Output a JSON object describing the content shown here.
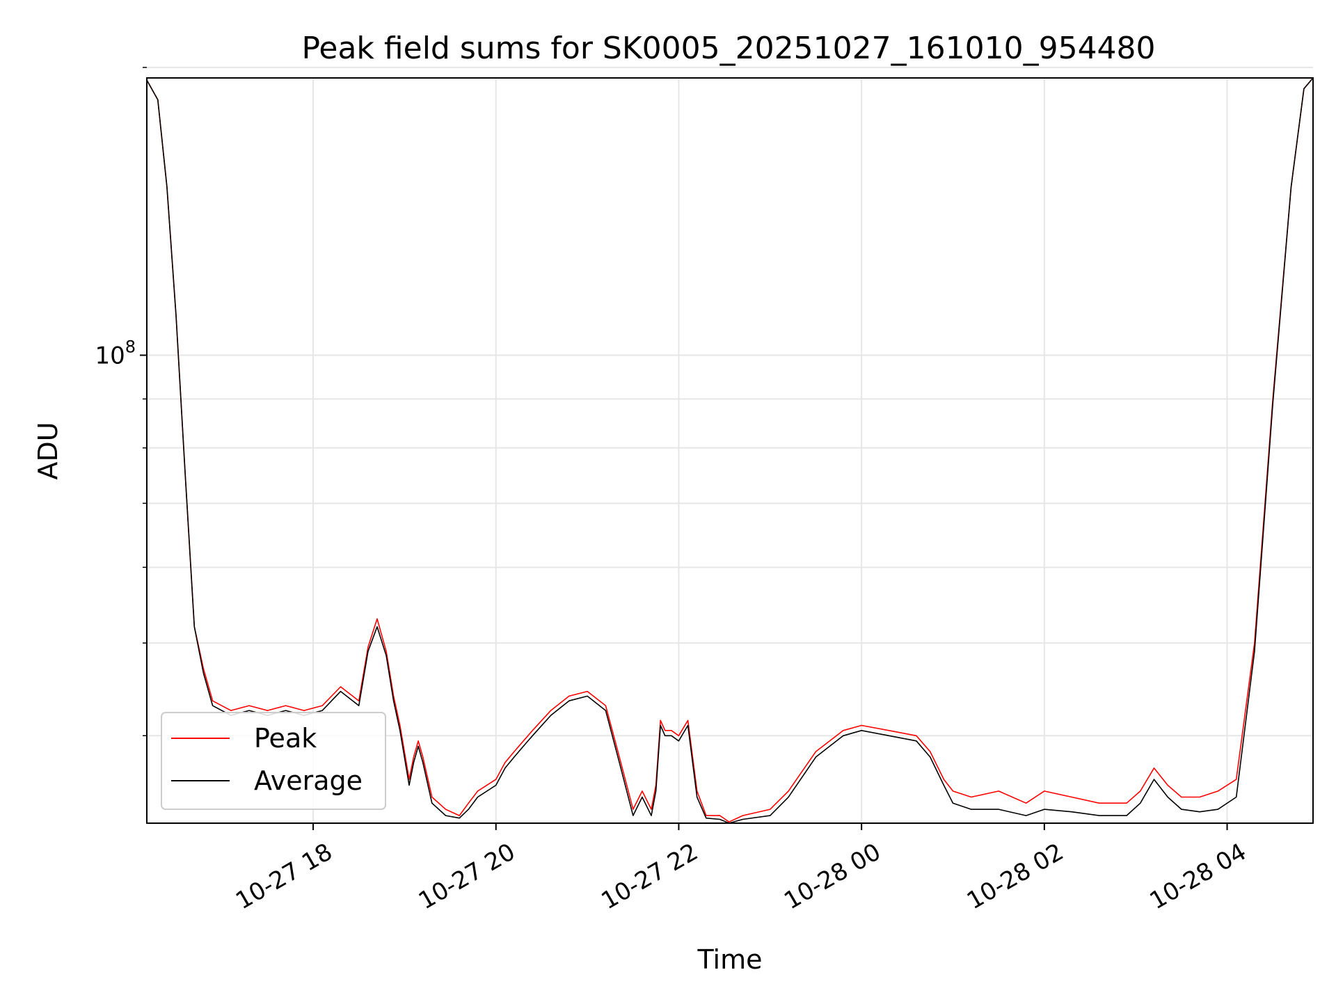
{
  "chart_data": {
    "type": "line",
    "title": "Peak field sums for SK0005_20251027_161010_954480",
    "xlabel": "Time",
    "ylabel": "ADU",
    "yscale": "log",
    "grid": true,
    "legend_location": "lower-left",
    "x_unit": "hours since 2025-10-27 00:00",
    "xlim": [
      16.18,
      28.94
    ],
    "ylim": [
      32400000.0,
      195000000.0
    ],
    "xticks": [
      {
        "value": 18,
        "label": "10-27 18"
      },
      {
        "value": 20,
        "label": "10-27 20"
      },
      {
        "value": 22,
        "label": "10-27 22"
      },
      {
        "value": 24,
        "label": "10-28 00"
      },
      {
        "value": 26,
        "label": "10-28 02"
      },
      {
        "value": 28,
        "label": "10-28 04"
      }
    ],
    "yticks_major": [
      {
        "value": 100000000,
        "label": "10",
        "exponent": "8"
      }
    ],
    "yticks_minor": [
      40000000.0,
      50000000.0,
      60000000.0,
      70000000.0,
      80000000.0,
      90000000.0,
      200000000.0
    ],
    "series": [
      {
        "name": "Peak",
        "color": "#ff0000",
        "x": [
          16.18,
          16.3,
          16.4,
          16.5,
          16.6,
          16.7,
          16.8,
          16.9,
          17.1,
          17.3,
          17.5,
          17.7,
          17.9,
          18.1,
          18.3,
          18.5,
          18.6,
          18.7,
          18.8,
          18.88,
          18.95,
          19.05,
          19.1,
          19.15,
          19.2,
          19.3,
          19.45,
          19.6,
          19.7,
          19.8,
          20.0,
          20.1,
          20.2,
          20.3,
          20.4,
          20.6,
          20.8,
          21.0,
          21.2,
          21.35,
          21.5,
          21.6,
          21.7,
          21.75,
          21.8,
          21.85,
          21.92,
          22.0,
          22.1,
          22.2,
          22.3,
          22.45,
          22.55,
          22.7,
          23.0,
          23.2,
          23.5,
          23.8,
          24.0,
          24.3,
          24.6,
          24.75,
          24.9,
          25.0,
          25.2,
          25.5,
          25.8,
          26.0,
          26.3,
          26.6,
          26.9,
          27.05,
          27.2,
          27.35,
          27.5,
          27.7,
          27.9,
          28.1,
          28.3,
          28.5,
          28.7,
          28.84,
          28.94
        ],
        "y": [
          194000000.0,
          185000000.0,
          150000000.0,
          110000000.0,
          75000000.0,
          52000000.0,
          47000000.0,
          43500000.0,
          42500000.0,
          43000000.0,
          42500000.0,
          43000000.0,
          42500000.0,
          43000000.0,
          45000000.0,
          43500000.0,
          49500000.0,
          53000000.0,
          49000000.0,
          44000000.0,
          41000000.0,
          36000000.0,
          38000000.0,
          39500000.0,
          38000000.0,
          34500000.0,
          33500000.0,
          33000000.0,
          34000000.0,
          35000000.0,
          36000000.0,
          37500000.0,
          38500000.0,
          39500000.0,
          40500000.0,
          42500000.0,
          44000000.0,
          44500000.0,
          43000000.0,
          38000000.0,
          33500000.0,
          35000000.0,
          33500000.0,
          35500000.0,
          41500000.0,
          40500000.0,
          40500000.0,
          40000000.0,
          41500000.0,
          35000000.0,
          33000000.0,
          33000000.0,
          32500000.0,
          33000000.0,
          33500000.0,
          35000000.0,
          38500000.0,
          40500000.0,
          41000000.0,
          40500000.0,
          40000000.0,
          38500000.0,
          36000000.0,
          35000000.0,
          34500000.0,
          35000000.0,
          34000000.0,
          35000000.0,
          34500000.0,
          34000000.0,
          34000000.0,
          35000000.0,
          37000000.0,
          35500000.0,
          34500000.0,
          34500000.0,
          35000000.0,
          36000000.0,
          50000000.0,
          90000000.0,
          150000000.0,
          190000000.0,
          195000000.0
        ]
      },
      {
        "name": "Average",
        "color": "#000000",
        "x": [
          16.18,
          16.3,
          16.4,
          16.5,
          16.6,
          16.7,
          16.8,
          16.9,
          17.1,
          17.3,
          17.5,
          17.7,
          17.9,
          18.1,
          18.3,
          18.5,
          18.6,
          18.7,
          18.8,
          18.88,
          18.95,
          19.05,
          19.1,
          19.15,
          19.2,
          19.3,
          19.45,
          19.6,
          19.7,
          19.8,
          20.0,
          20.1,
          20.2,
          20.3,
          20.4,
          20.6,
          20.8,
          21.0,
          21.2,
          21.35,
          21.5,
          21.6,
          21.7,
          21.75,
          21.8,
          21.85,
          21.92,
          22.0,
          22.1,
          22.2,
          22.3,
          22.45,
          22.55,
          22.7,
          23.0,
          23.2,
          23.5,
          23.8,
          24.0,
          24.3,
          24.6,
          24.75,
          24.9,
          25.0,
          25.2,
          25.5,
          25.8,
          26.0,
          26.3,
          26.6,
          26.9,
          27.05,
          27.2,
          27.35,
          27.5,
          27.7,
          27.9,
          28.1,
          28.3,
          28.5,
          28.7,
          28.84,
          28.94
        ],
        "y": [
          194000000.0,
          185000000.0,
          150000000.0,
          110000000.0,
          75000000.0,
          52000000.0,
          46500000.0,
          43000000.0,
          42000000.0,
          42500000.0,
          42000000.0,
          42500000.0,
          42000000.0,
          42500000.0,
          44500000.0,
          43000000.0,
          49000000.0,
          52000000.0,
          48500000.0,
          43500000.0,
          40500000.0,
          35500000.0,
          37500000.0,
          39000000.0,
          37500000.0,
          34000000.0,
          33000000.0,
          32800000.0,
          33500000.0,
          34500000.0,
          35500000.0,
          37000000.0,
          38000000.0,
          39000000.0,
          40000000.0,
          42000000.0,
          43500000.0,
          44000000.0,
          42500000.0,
          37500000.0,
          33000000.0,
          34500000.0,
          33000000.0,
          35000000.0,
          41000000.0,
          40000000.0,
          40000000.0,
          39500000.0,
          41000000.0,
          34500000.0,
          32800000.0,
          32700000.0,
          32400000.0,
          32700000.0,
          33000000.0,
          34500000.0,
          38000000.0,
          40000000.0,
          40500000.0,
          40000000.0,
          39500000.0,
          38000000.0,
          35500000.0,
          34000000.0,
          33500000.0,
          33500000.0,
          33000000.0,
          33500000.0,
          33300000.0,
          33000000.0,
          33000000.0,
          34000000.0,
          36000000.0,
          34500000.0,
          33500000.0,
          33300000.0,
          33500000.0,
          34500000.0,
          49000000.0,
          89000000.0,
          150000000.0,
          190000000.0,
          195000000.0
        ]
      }
    ]
  }
}
